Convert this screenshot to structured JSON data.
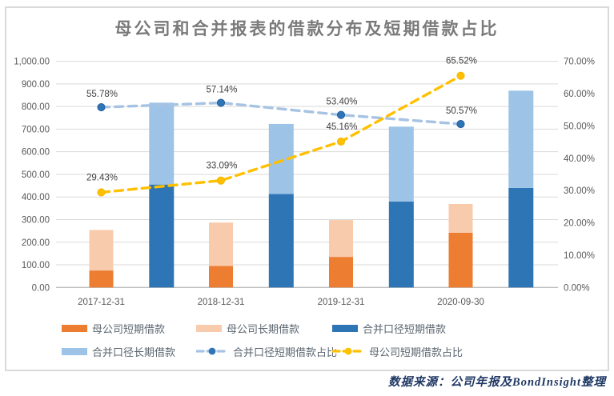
{
  "title": "母公司和合并报表的借款分布及短期借款占比",
  "source_note": "数据来源：公司年报及BondInsight整理",
  "chart_data": {
    "type": "bar",
    "subtype": "stacked-columns-with-lines-dual-axis",
    "title": "母公司和合并报表的借款分布及短期借款占比",
    "categories": [
      "2017-12-31",
      "2018-12-31",
      "2019-12-31",
      "2020-09-30"
    ],
    "bar_series": [
      {
        "name": "母公司短期借款",
        "stack": "parent",
        "color": "#ED7D31",
        "values": [
          75,
          95,
          135,
          242
        ]
      },
      {
        "name": "母公司长期借款",
        "stack": "parent",
        "color": "#F8CBAD",
        "values": [
          179,
          192,
          163,
          127
        ]
      },
      {
        "name": "合并口径短期借款",
        "stack": "consolidated",
        "color": "#2E75B6",
        "values": [
          455,
          413,
          380,
          440
        ]
      },
      {
        "name": "合并口径长期借款",
        "stack": "consolidated",
        "color": "#9DC3E6",
        "values": [
          362,
          310,
          331,
          430
        ]
      }
    ],
    "line_series": [
      {
        "name": "合并口径短期借款占比",
        "axis": "right",
        "color": "#A6C3E3",
        "marker_color": "#2E75B6",
        "marker_stroke": "#1F5C99",
        "values": [
          55.78,
          57.14,
          53.4,
          50.57
        ],
        "point_labels": [
          "55.78%",
          "57.14%",
          "53.40%",
          "50.57%"
        ],
        "label_dy": -13
      },
      {
        "name": "母公司短期借款占比",
        "axis": "right",
        "color": "#FFC000",
        "marker_color": "#FFC000",
        "marker_stroke": "#F2B300",
        "values": [
          29.43,
          33.09,
          45.16,
          65.52
        ],
        "point_labels": [
          "29.43%",
          "33.09%",
          "45.16%",
          "65.52%"
        ],
        "label_dy": -15
      }
    ],
    "left_axis": {
      "min": 0,
      "max": 1000,
      "step": 100,
      "tick_labels": [
        "0.00",
        "100.00",
        "200.00",
        "300.00",
        "400.00",
        "500.00",
        "600.00",
        "700.00",
        "800.00",
        "900.00",
        "1,000.00"
      ]
    },
    "right_axis": {
      "min": 0,
      "max": 70,
      "step": 10,
      "tick_labels": [
        "0.00%",
        "10.00%",
        "20.00%",
        "30.00%",
        "40.00%",
        "50.00%",
        "60.00%",
        "70.00%"
      ]
    },
    "grid": true,
    "legend_position": "bottom"
  },
  "legend": {
    "items": [
      {
        "label": "母公司短期借款",
        "swatch": "bar",
        "color": "#ED7D31"
      },
      {
        "label": "母公司长期借款",
        "swatch": "bar",
        "color": "#F8CBAD"
      },
      {
        "label": "合并口径短期借款",
        "swatch": "bar",
        "color": "#2E75B6"
      },
      {
        "label": "合并口径长期借款",
        "swatch": "bar",
        "color": "#9DC3E6"
      },
      {
        "label": "合并口径短期借款占比",
        "swatch": "line",
        "color": "#A6C3E3",
        "marker_color": "#2E75B6"
      },
      {
        "label": "母公司短期借款占比",
        "swatch": "line",
        "color": "#FFC000",
        "marker_color": "#FFC000"
      }
    ]
  },
  "colors": {
    "grid": "#D9D9D9",
    "axis_line": "#BFBFBF",
    "frame_border": "#DADADA",
    "tick_text": "#595959",
    "data_label_text": "#404040",
    "title_text": "#7A7A7A",
    "source_text": "#1F3864"
  }
}
